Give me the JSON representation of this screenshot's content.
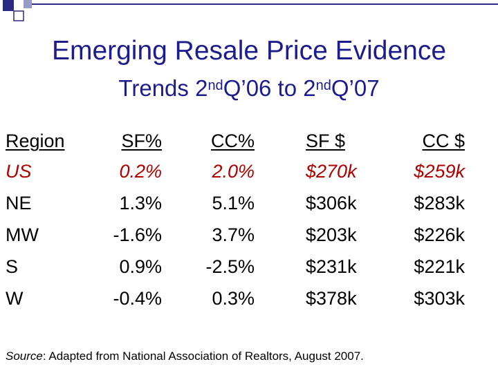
{
  "slide": {
    "title_line1": "Emerging Resale Price Evidence",
    "title_line2": {
      "prefix": "Trends 2",
      "sup1": "nd",
      "mid": "Q’06 to 2",
      "sup2": "nd",
      "suffix": "Q’07"
    }
  },
  "table": {
    "headers": [
      "Region",
      "SF%",
      "CC%",
      "SF $",
      "CC $"
    ],
    "rows": [
      [
        "US",
        "0.2%",
        "2.0%",
        "$270k",
        "$259k"
      ],
      [
        "NE",
        "1.3%",
        "5.1%",
        "$306k",
        "$283k"
      ],
      [
        "MW",
        "-1.6%",
        "3.7%",
        "$203k",
        "$226k"
      ],
      [
        "S",
        "0.9%",
        "-2.5%",
        "$231k",
        "$221k"
      ],
      [
        "W",
        "-0.4%",
        "0.3%",
        "$378k",
        "$303k"
      ]
    ]
  },
  "source": {
    "label": "Source",
    "text": ": Adapted from National Association of Realtors, August 2007."
  },
  "colors": {
    "title": "#1c1c8c",
    "highlight_row": "#b00000",
    "decoration": "#2a2a80"
  }
}
